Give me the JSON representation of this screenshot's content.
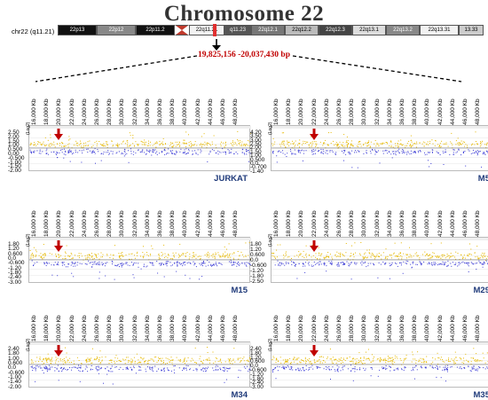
{
  "title": "Chromosome 22",
  "chromosome_label": "chr22 (q11.21)",
  "region_text": "19,825,156 -20,037,430 bp",
  "bands": [
    {
      "label": "22p13",
      "color": "#111111",
      "text": "#ffffff"
    },
    {
      "label": "22p12",
      "color": "#888888",
      "text": "#ffffff"
    },
    {
      "label": "22p11.2",
      "color": "#111111",
      "text": "#ffffff"
    },
    {
      "label": "",
      "color": "#c0392b",
      "text": "#ffffff"
    },
    {
      "label": "22q11.21",
      "color": "#f2f2f2",
      "text": "#000000"
    },
    {
      "label": "q11.23",
      "color": "#555555",
      "text": "#ffffff"
    },
    {
      "label": "22q12.1",
      "color": "#777777",
      "text": "#ffffff"
    },
    {
      "label": "22q12.2",
      "color": "#bbbbbb",
      "text": "#000000"
    },
    {
      "label": "22q12.3",
      "color": "#444444",
      "text": "#ffffff"
    },
    {
      "label": "22q13.1",
      "color": "#dddddd",
      "text": "#000000"
    },
    {
      "label": "22q13.2",
      "color": "#888888",
      "text": "#ffffff"
    },
    {
      "label": "22q13.31",
      "color": "#f2f2f2",
      "text": "#000000"
    },
    {
      "label": "13.33",
      "color": "#cccccc",
      "text": "#000000"
    }
  ],
  "x_ticks": [
    "16,000 Kb",
    "18,000 Kb",
    "20,000 Kb",
    "22,000 Kb",
    "24,000 Kb",
    "26,000 Kb",
    "28,000 Kb",
    "30,000 Kb",
    "32,000 Kb",
    "34,000 Kb",
    "36,000 Kb",
    "38,000 Kb",
    "40,000 Kb",
    "42,000 Kb",
    "44,000 Kb",
    "46,000 Kb",
    "48,000 Kb"
  ],
  "colors": {
    "gain": "#e6b800",
    "loss": "#3b3bd6",
    "arrow": "#c00000",
    "label": "#1f3a7a"
  },
  "panels": [
    {
      "sample": "JURKAT",
      "y_ticks": [
        "2.50",
        "2.00",
        "1.50",
        "1.00",
        "0.500",
        "0.00",
        "-0.500",
        "-1.00",
        "-1.50",
        "-2.00"
      ]
    },
    {
      "sample": "M5",
      "y_ticks": [
        "4.20",
        "3.50",
        "3.00",
        "2.50",
        "2.00",
        "1.50",
        "1.00",
        "0.500",
        "0.0",
        "-0.700",
        "-1.40"
      ]
    },
    {
      "sample": "M15",
      "y_ticks": [
        "1.80",
        "1.20",
        "0.600",
        "0.0",
        "-0.600",
        "-1.20",
        "-1.80",
        "-2.40",
        "-3.00"
      ]
    },
    {
      "sample": "M29",
      "y_ticks": [
        "1.80",
        "1.20",
        "0.600",
        "0.0",
        "-0.600",
        "-1.20",
        "-1.80",
        "-2.50"
      ]
    },
    {
      "sample": "M34",
      "y_ticks": [
        "2.40",
        "1.80",
        "1.00",
        "0.600",
        "0.0",
        "-0.600",
        "-1.00",
        "-1.40",
        "-2.00"
      ]
    },
    {
      "sample": "M35",
      "y_ticks": [
        "2.40",
        "1.80",
        "1.20",
        "0.600",
        "0.0",
        "-0.600",
        "-1.20",
        "-1.80",
        "-2.40",
        "-3.00"
      ]
    }
  ],
  "y_axis_label": "(Log2)"
}
